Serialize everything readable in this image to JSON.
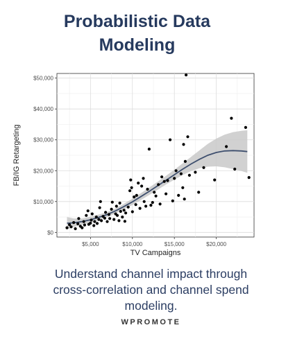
{
  "header": {
    "title_line1": "Probabilistic Data",
    "title_line2": "Modeling"
  },
  "caption": {
    "line1": "Understand channel impact through",
    "line2": "cross-correlation and channel spend",
    "line3": "modeling."
  },
  "brand": "WPROMOTE",
  "colors": {
    "title": "#263a5e",
    "fit_line": "#3e4f6e",
    "confidence_band": "#c9c9c9",
    "points": "#000000"
  },
  "chart_data": {
    "type": "scatter",
    "xlabel": "TV Campaigns",
    "ylabel": "FB/IG Retargeting",
    "xlim": [
      1000,
      24500
    ],
    "ylim": [
      -1500,
      51500
    ],
    "grid": true,
    "xticks": [
      5000,
      10000,
      15000,
      20000
    ],
    "xtick_labels": [
      "$5,000",
      "$10,000",
      "$15,000",
      "$20,000"
    ],
    "yticks": [
      0,
      10000,
      20000,
      30000,
      40000,
      50000
    ],
    "ytick_labels": [
      "$0",
      "$10,000",
      "$20,000",
      "$30,000",
      "$40,000",
      "$50,000"
    ],
    "points": [
      [
        2200,
        1500
      ],
      [
        2500,
        2500
      ],
      [
        2700,
        1800
      ],
      [
        3000,
        3200
      ],
      [
        3200,
        1200
      ],
      [
        3500,
        2800
      ],
      [
        3600,
        4500
      ],
      [
        3800,
        2000
      ],
      [
        4000,
        1500
      ],
      [
        4200,
        3500
      ],
      [
        4300,
        2400
      ],
      [
        4500,
        5500
      ],
      [
        4700,
        7000
      ],
      [
        4800,
        2600
      ],
      [
        5000,
        3000
      ],
      [
        5100,
        4000
      ],
      [
        5200,
        6000
      ],
      [
        5400,
        2200
      ],
      [
        5500,
        3500
      ],
      [
        5700,
        5000
      ],
      [
        5800,
        2900
      ],
      [
        6000,
        4200
      ],
      [
        6100,
        8000
      ],
      [
        6200,
        10000
      ],
      [
        6300,
        3800
      ],
      [
        6500,
        5200
      ],
      [
        6700,
        4600
      ],
      [
        6800,
        6500
      ],
      [
        7000,
        3500
      ],
      [
        7200,
        5800
      ],
      [
        7300,
        4500
      ],
      [
        7500,
        7500
      ],
      [
        7600,
        9800
      ],
      [
        7800,
        4200
      ],
      [
        8000,
        6000
      ],
      [
        8100,
        8500
      ],
      [
        8200,
        5500
      ],
      [
        8400,
        3800
      ],
      [
        8500,
        9500
      ],
      [
        8600,
        6800
      ],
      [
        8800,
        5000
      ],
      [
        9000,
        7200
      ],
      [
        9100,
        3600
      ],
      [
        9200,
        6300
      ],
      [
        9500,
        8200
      ],
      [
        9700,
        13500
      ],
      [
        9800,
        17000
      ],
      [
        9900,
        14500
      ],
      [
        10000,
        6700
      ],
      [
        10200,
        11500
      ],
      [
        10400,
        9000
      ],
      [
        10500,
        12000
      ],
      [
        10700,
        16000
      ],
      [
        10900,
        7800
      ],
      [
        11100,
        15000
      ],
      [
        11300,
        17500
      ],
      [
        11400,
        10000
      ],
      [
        11600,
        8500
      ],
      [
        11800,
        14000
      ],
      [
        12000,
        27000
      ],
      [
        12200,
        8800
      ],
      [
        12400,
        9700
      ],
      [
        12600,
        13000
      ],
      [
        12800,
        11800
      ],
      [
        13100,
        15500
      ],
      [
        13300,
        9200
      ],
      [
        13500,
        18000
      ],
      [
        13800,
        16500
      ],
      [
        14000,
        12500
      ],
      [
        14200,
        16800
      ],
      [
        14500,
        30000
      ],
      [
        14800,
        10200
      ],
      [
        15000,
        17500
      ],
      [
        15200,
        20000
      ],
      [
        15500,
        12000
      ],
      [
        15800,
        19000
      ],
      [
        16000,
        14500
      ],
      [
        16100,
        28500
      ],
      [
        16200,
        10800
      ],
      [
        16300,
        23000
      ],
      [
        16400,
        51000
      ],
      [
        16600,
        31000
      ],
      [
        16800,
        18500
      ],
      [
        17500,
        19500
      ],
      [
        17900,
        13000
      ],
      [
        18500,
        21000
      ],
      [
        19800,
        17000
      ],
      [
        21200,
        27800
      ],
      [
        21800,
        37000
      ],
      [
        22200,
        20500
      ],
      [
        23500,
        34000
      ],
      [
        23900,
        17800
      ]
    ],
    "fit": {
      "x": [
        2200,
        3000,
        4000,
        5000,
        6000,
        7000,
        8000,
        9000,
        10000,
        11000,
        12000,
        13000,
        14000,
        15000,
        16000,
        17000,
        18000,
        19000,
        20000,
        21000,
        22000,
        23000,
        23700
      ],
      "y": [
        3000,
        3100,
        3500,
        4100,
        4900,
        5800,
        7000,
        8400,
        9900,
        11600,
        13300,
        15100,
        16900,
        18700,
        20500,
        22200,
        23700,
        25000,
        25900,
        26400,
        26500,
        26400,
        26200
      ],
      "lower": [
        1000,
        1700,
        2500,
        3100,
        4000,
        5000,
        6200,
        7500,
        8900,
        10500,
        12100,
        13800,
        15500,
        17100,
        18600,
        19900,
        20800,
        21300,
        21400,
        21100,
        20500,
        19900,
        19300
      ],
      "upper": [
        5000,
        4500,
        4500,
        5100,
        5800,
        6600,
        7800,
        9300,
        10900,
        12700,
        14500,
        16400,
        18300,
        20300,
        22400,
        24500,
        26600,
        28700,
        30400,
        31700,
        32500,
        32900,
        33100
      ]
    }
  }
}
